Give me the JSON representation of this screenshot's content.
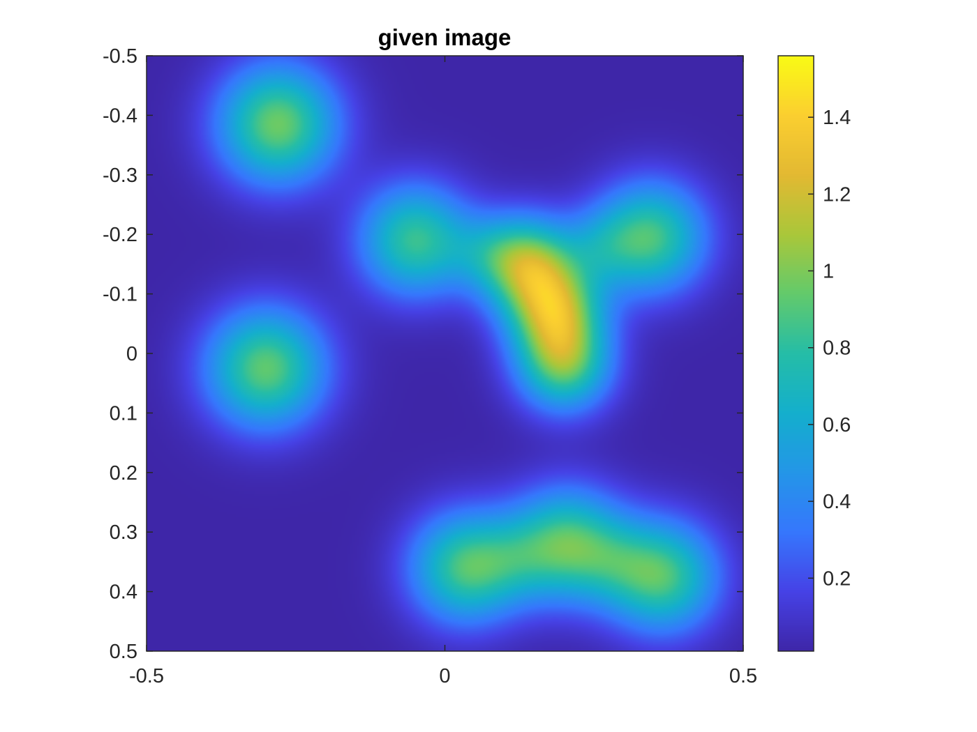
{
  "chart_data": {
    "type": "heatmap",
    "title": "given image",
    "xlabel": "",
    "ylabel": "",
    "xlim": [
      -0.5,
      0.5
    ],
    "ylim": [
      -0.5,
      0.5
    ],
    "y_direction": "reversed",
    "grid": false,
    "colormap": "parula",
    "color_limits": [
      0.01,
      1.56
    ],
    "x_ticks": [
      -0.5,
      0,
      0.5
    ],
    "x_tick_labels": [
      "-0.5",
      "0",
      "0.5"
    ],
    "y_ticks": [
      -0.5,
      -0.4,
      -0.3,
      -0.2,
      -0.1,
      0,
      0.1,
      0.2,
      0.3,
      0.4,
      0.5
    ],
    "y_tick_labels": [
      "-0.5",
      "-0.4",
      "-0.3",
      "-0.2",
      "-0.1",
      "0",
      "0.1",
      "0.2",
      "0.3",
      "0.4",
      "0.5"
    ],
    "colorbar": {
      "location": "right",
      "ticks": [
        0.2,
        0.4,
        0.6,
        0.8,
        1.0,
        1.2,
        1.4
      ],
      "tick_labels": [
        "0.2",
        "0.4",
        "0.6",
        "0.8",
        "1",
        "1.2",
        "1.4"
      ]
    },
    "background_value": 0.01,
    "blobs": [
      {
        "x": -0.28,
        "y": -0.385,
        "sigma": 0.07,
        "amp": 0.95
      },
      {
        "x": -0.3,
        "y": 0.025,
        "sigma": 0.07,
        "amp": 0.92
      },
      {
        "x": -0.05,
        "y": -0.19,
        "sigma": 0.065,
        "amp": 0.82
      },
      {
        "x": 0.345,
        "y": -0.195,
        "sigma": 0.065,
        "amp": 0.85
      },
      {
        "x": 0.14,
        "y": -0.15,
        "sigma": 0.055,
        "amp": 0.95
      },
      {
        "x": 0.185,
        "y": -0.07,
        "sigma": 0.055,
        "amp": 0.95
      },
      {
        "x": 0.2,
        "y": 0.02,
        "sigma": 0.055,
        "amp": 0.85
      },
      {
        "x": 0.07,
        "y": -0.17,
        "sigma": 0.045,
        "amp": 0.25
      },
      {
        "x": 0.26,
        "y": -0.18,
        "sigma": 0.045,
        "amp": 0.25
      },
      {
        "x": 0.035,
        "y": 0.36,
        "sigma": 0.065,
        "amp": 0.85
      },
      {
        "x": 0.205,
        "y": 0.32,
        "sigma": 0.065,
        "amp": 0.85
      },
      {
        "x": 0.365,
        "y": 0.375,
        "sigma": 0.065,
        "amp": 0.85
      },
      {
        "x": 0.12,
        "y": 0.345,
        "sigma": 0.05,
        "amp": 0.2
      },
      {
        "x": 0.285,
        "y": 0.35,
        "sigma": 0.05,
        "amp": 0.2
      }
    ]
  }
}
